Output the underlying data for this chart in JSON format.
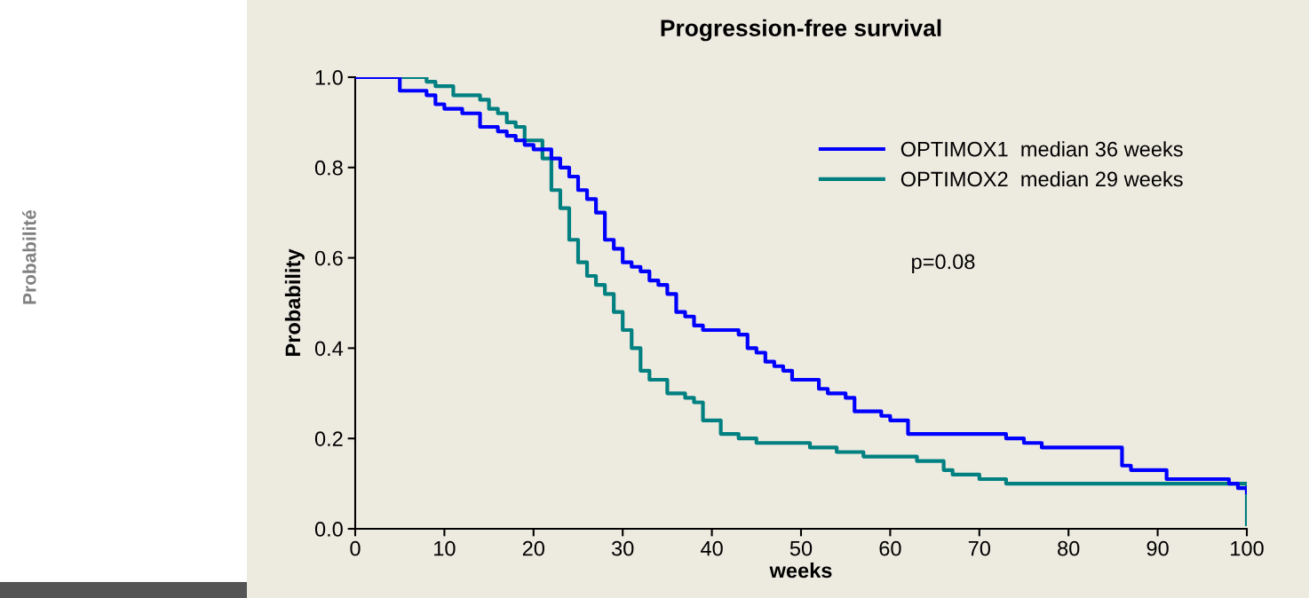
{
  "chart_data": {
    "type": "step",
    "title": "Progression-free survival",
    "xlabel": "weeks",
    "ylabel": "Probability",
    "series": [
      {
        "name": "OPTIMOX1  median 36 weeks",
        "color": "#0000ff",
        "x": [
          0,
          5,
          8,
          9,
          10,
          12,
          14,
          16,
          17,
          18,
          19,
          20,
          22,
          23,
          24,
          25,
          26,
          27,
          28,
          29,
          30,
          31,
          32,
          33,
          34,
          35,
          36,
          37,
          38,
          39,
          43,
          44,
          45,
          46,
          47,
          48,
          49,
          52,
          53,
          55,
          56,
          59,
          60,
          62,
          73,
          75,
          77,
          86,
          87,
          91,
          98,
          99,
          100
        ],
        "values": [
          1.0,
          0.97,
          0.96,
          0.94,
          0.93,
          0.92,
          0.89,
          0.88,
          0.87,
          0.86,
          0.85,
          0.84,
          0.82,
          0.8,
          0.78,
          0.75,
          0.73,
          0.7,
          0.64,
          0.62,
          0.59,
          0.58,
          0.57,
          0.55,
          0.54,
          0.52,
          0.48,
          0.47,
          0.45,
          0.44,
          0.43,
          0.4,
          0.39,
          0.37,
          0.36,
          0.35,
          0.33,
          0.31,
          0.3,
          0.29,
          0.26,
          0.25,
          0.24,
          0.21,
          0.2,
          0.19,
          0.18,
          0.14,
          0.13,
          0.11,
          0.1,
          0.09,
          0.08
        ]
      },
      {
        "name": "OPTIMOX2  median 29 weeks",
        "color": "#008080",
        "x": [
          0,
          8,
          9,
          11,
          14,
          15,
          16,
          17,
          18,
          19,
          21,
          22,
          23,
          24,
          25,
          26,
          27,
          28,
          29,
          30,
          31,
          32,
          33,
          35,
          37,
          38,
          39,
          41,
          43,
          45,
          51,
          54,
          57,
          63,
          66,
          67,
          70,
          73,
          100,
          100
        ],
        "values": [
          1.0,
          0.99,
          0.98,
          0.96,
          0.95,
          0.93,
          0.92,
          0.9,
          0.89,
          0.86,
          0.82,
          0.75,
          0.71,
          0.64,
          0.59,
          0.56,
          0.54,
          0.52,
          0.48,
          0.44,
          0.4,
          0.35,
          0.33,
          0.3,
          0.29,
          0.28,
          0.24,
          0.21,
          0.2,
          0.19,
          0.18,
          0.17,
          0.16,
          0.15,
          0.13,
          0.12,
          0.11,
          0.1,
          0.1,
          0.01
        ]
      }
    ],
    "xlim": [
      0,
      100
    ],
    "xticks": [
      0,
      10,
      20,
      30,
      40,
      50,
      60,
      70,
      80,
      90,
      100
    ],
    "ylim": [
      0,
      1
    ],
    "yticks": [
      {
        "value": 0,
        "label": "0.0"
      },
      0.2,
      0.4,
      0.6,
      0.8,
      {
        "value": 1,
        "label": "1.0"
      }
    ],
    "grid": false,
    "legend": "top right",
    "line_style": "solid",
    "annotations": [
      "p=0.08",
      "Probabilité"
    ]
  }
}
